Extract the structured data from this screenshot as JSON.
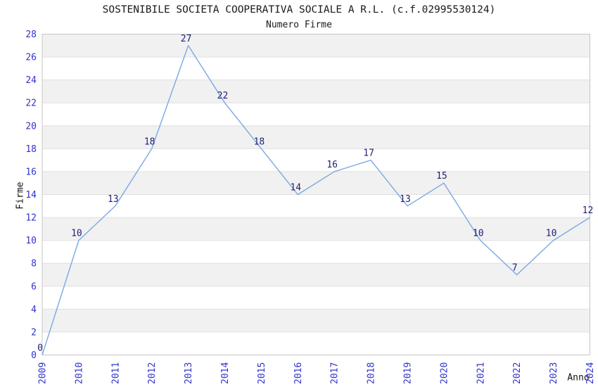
{
  "chart_data": {
    "type": "line",
    "title": "SOSTENIBILE SOCIETA COOPERATIVA SOCIALE A R.L. (c.f.02995530124)",
    "subtitle": "Numero Firme",
    "xlabel": "Anno",
    "ylabel": "Firme",
    "x": [
      "2009",
      "2010",
      "2011",
      "2012",
      "2013",
      "2014",
      "2015",
      "2016",
      "2017",
      "2018",
      "2019",
      "2020",
      "2021",
      "2022",
      "2023",
      "2024"
    ],
    "values": [
      0,
      10,
      13,
      18,
      27,
      22,
      18,
      14,
      16,
      17,
      13,
      15,
      10,
      7,
      10,
      12
    ],
    "ylim": [
      0,
      28
    ],
    "ytick_step": 2,
    "grid": true,
    "band_fill": true,
    "legend": "none",
    "colors": {
      "line": "#7aa9e2",
      "tick_label": "#3232cd",
      "data_label": "#1e1e78",
      "band": "#f1f1f1",
      "gridline": "#e0e0e0",
      "border": "#c6c6c6",
      "title": "#1a1a1a"
    }
  }
}
